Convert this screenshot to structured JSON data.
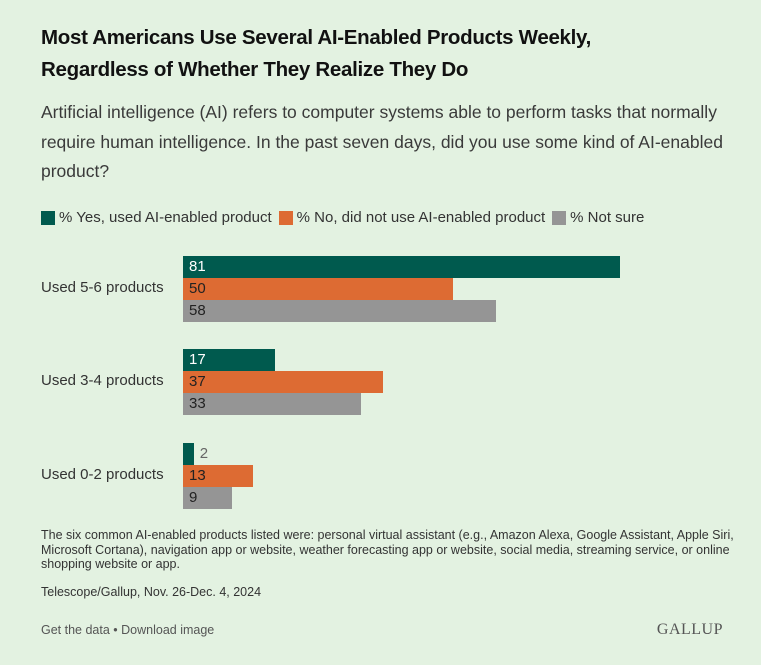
{
  "header": {
    "title_line1": "Most Americans Use Several AI-Enabled Products Weekly,",
    "title_line2": "Regardless of Whether They Realize They Do",
    "subtitle": "Artificial intelligence (AI) refers to computer systems able to perform tasks that normally require human intelligence. In the past seven days, did you use some kind of AI-enabled product?"
  },
  "colors": {
    "yes": "#005a4e",
    "no": "#dd6b33",
    "not_sure": "#959595"
  },
  "chart_data": {
    "type": "bar",
    "orientation": "horizontal",
    "title": "Most Americans Use Several AI-Enabled Products Weekly, Regardless of Whether They Realize They Do",
    "categories": [
      "Used 5-6 products",
      "Used 3-4 products",
      "Used 0-2 products"
    ],
    "series": [
      {
        "name": "% Yes, used AI-enabled product",
        "key": "yes",
        "values": [
          81,
          17,
          2
        ]
      },
      {
        "name": "% No, did not use AI-enabled product",
        "key": "no",
        "values": [
          50,
          37,
          13
        ]
      },
      {
        "name": "% Not sure",
        "key": "not_sure",
        "values": [
          58,
          33,
          9
        ]
      }
    ],
    "xlabel": "",
    "ylabel": "",
    "xlim": [
      0,
      100
    ],
    "grid": false,
    "legend": "top-left"
  },
  "footer": {
    "note": "The six common AI-enabled products listed were: personal virtual assistant (e.g., Amazon Alexa, Google Assistant, Apple Siri, Microsoft Cortana), navigation app or website, weather forecasting app or website, social media, streaming service, or online shopping website or app.",
    "source": "Telescope/Gallup, Nov. 26-Dec. 4, 2024",
    "get_data": "Get the data",
    "separator": " • ",
    "download": "Download image",
    "logo": "GALLUP"
  }
}
